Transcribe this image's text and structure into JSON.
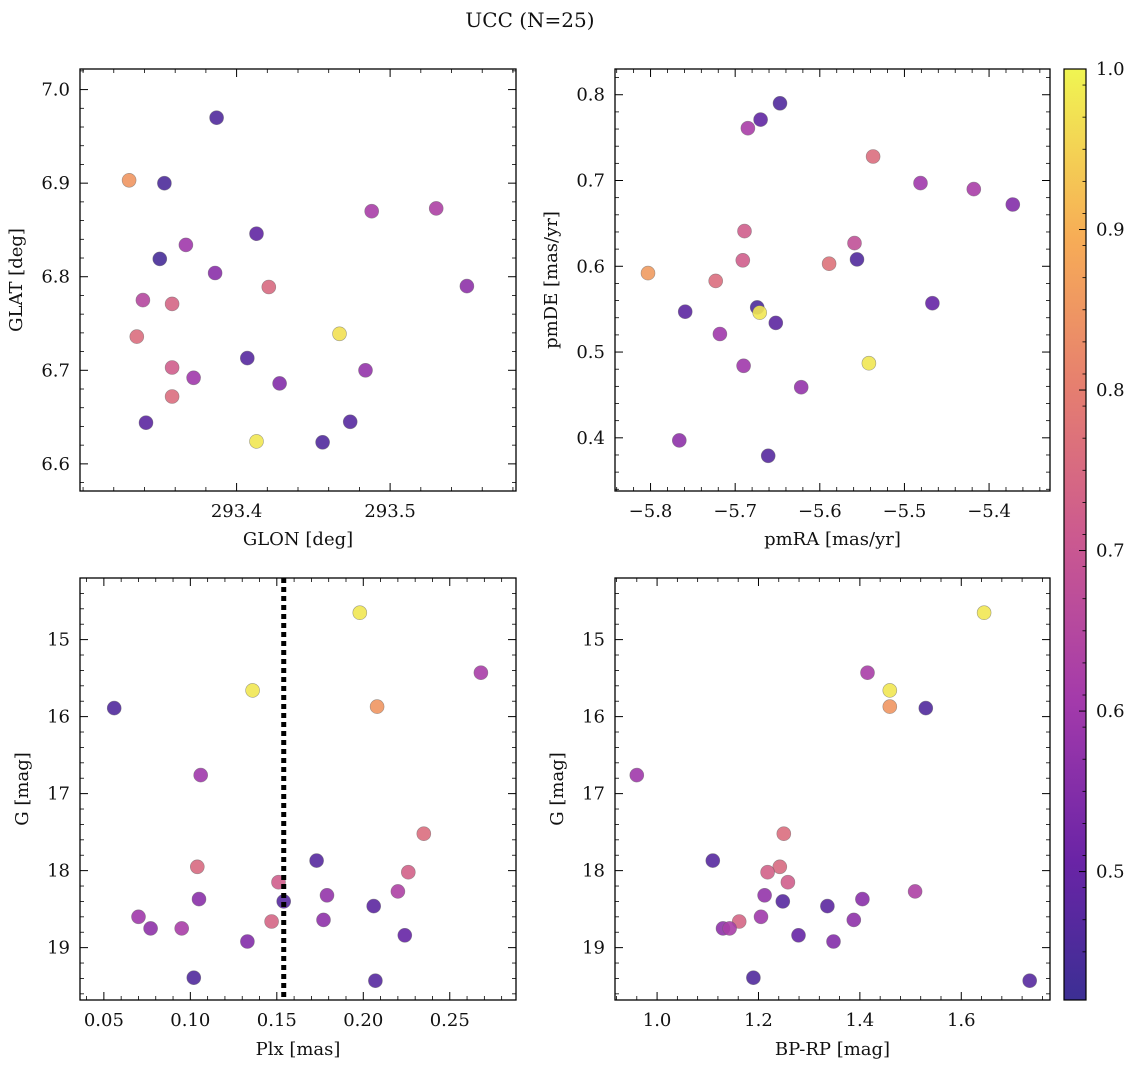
{
  "figure": {
    "title": "UCC (N=25)"
  },
  "colorbar": {
    "range": [
      0.42,
      1.0
    ],
    "ticks": [
      0.5,
      0.6,
      0.7,
      0.8,
      0.9,
      1.0
    ],
    "tick_labels": [
      "0.5",
      "0.6",
      "0.7",
      "0.8",
      "0.9",
      "1.0"
    ],
    "colormap": "plasma"
  },
  "styles": {
    "marker_alpha": 0.9,
    "marker_edge": "#666666",
    "vline_color": "#000000"
  },
  "chart_data": [
    {
      "type": "scatter",
      "name": "glon-glat",
      "xlabel": "GLON [deg]",
      "ylabel": "GLAT [deg]",
      "xlim": [
        293.298,
        293.582
      ],
      "ylim": [
        6.571,
        7.022
      ],
      "xticks": [
        293.4,
        293.5
      ],
      "xtick_labels": [
        "293.4",
        "293.5"
      ],
      "yticks": [
        6.6,
        6.7,
        6.8,
        6.9,
        7.0
      ],
      "ytick_labels": [
        "6.6",
        "6.7",
        "6.8",
        "6.9",
        "7.0"
      ],
      "points": [
        {
          "x": 293.33,
          "y": 6.903,
          "c": 0.85
        },
        {
          "x": 293.353,
          "y": 6.9,
          "c": 0.45
        },
        {
          "x": 293.387,
          "y": 6.97,
          "c": 0.46
        },
        {
          "x": 293.35,
          "y": 6.819,
          "c": 0.44
        },
        {
          "x": 293.367,
          "y": 6.834,
          "c": 0.6
        },
        {
          "x": 293.413,
          "y": 6.846,
          "c": 0.49
        },
        {
          "x": 293.386,
          "y": 6.804,
          "c": 0.56
        },
        {
          "x": 293.421,
          "y": 6.789,
          "c": 0.75
        },
        {
          "x": 293.339,
          "y": 6.775,
          "c": 0.65
        },
        {
          "x": 293.358,
          "y": 6.771,
          "c": 0.74
        },
        {
          "x": 293.335,
          "y": 6.736,
          "c": 0.76
        },
        {
          "x": 293.407,
          "y": 6.713,
          "c": 0.47
        },
        {
          "x": 293.358,
          "y": 6.703,
          "c": 0.72
        },
        {
          "x": 293.372,
          "y": 6.692,
          "c": 0.6
        },
        {
          "x": 293.428,
          "y": 6.686,
          "c": 0.55
        },
        {
          "x": 293.358,
          "y": 6.672,
          "c": 0.76
        },
        {
          "x": 293.341,
          "y": 6.644,
          "c": 0.48
        },
        {
          "x": 293.413,
          "y": 6.624,
          "c": 0.98
        },
        {
          "x": 293.456,
          "y": 6.623,
          "c": 0.46
        },
        {
          "x": 293.474,
          "y": 6.645,
          "c": 0.47
        },
        {
          "x": 293.484,
          "y": 6.7,
          "c": 0.58
        },
        {
          "x": 293.467,
          "y": 6.739,
          "c": 0.97
        },
        {
          "x": 293.488,
          "y": 6.87,
          "c": 0.62
        },
        {
          "x": 293.53,
          "y": 6.873,
          "c": 0.63
        },
        {
          "x": 293.55,
          "y": 6.79,
          "c": 0.57
        }
      ]
    },
    {
      "type": "scatter",
      "name": "pm",
      "xlabel": "pmRA [mas/yr]",
      "ylabel": "pmDE [mas/yr]",
      "xlim": [
        -5.842,
        -5.328
      ],
      "ylim": [
        0.338,
        0.83
      ],
      "xticks": [
        -5.8,
        -5.7,
        -5.6,
        -5.5,
        -5.4
      ],
      "xtick_labels": [
        "−5.8",
        "−5.7",
        "−5.6",
        "−5.5",
        "−5.4"
      ],
      "yticks": [
        0.4,
        0.5,
        0.6,
        0.7,
        0.8
      ],
      "ytick_labels": [
        "0.4",
        "0.5",
        "0.6",
        "0.7",
        "0.8"
      ],
      "points": [
        {
          "x": -5.647,
          "y": 0.79,
          "c": 0.46
        },
        {
          "x": -5.67,
          "y": 0.771,
          "c": 0.49
        },
        {
          "x": -5.685,
          "y": 0.761,
          "c": 0.62
        },
        {
          "x": -5.537,
          "y": 0.728,
          "c": 0.76
        },
        {
          "x": -5.481,
          "y": 0.697,
          "c": 0.6
        },
        {
          "x": -5.418,
          "y": 0.69,
          "c": 0.62
        },
        {
          "x": -5.372,
          "y": 0.672,
          "c": 0.55
        },
        {
          "x": -5.689,
          "y": 0.641,
          "c": 0.72
        },
        {
          "x": -5.559,
          "y": 0.627,
          "c": 0.68
        },
        {
          "x": -5.556,
          "y": 0.608,
          "c": 0.46
        },
        {
          "x": -5.691,
          "y": 0.607,
          "c": 0.72
        },
        {
          "x": -5.589,
          "y": 0.603,
          "c": 0.77
        },
        {
          "x": -5.803,
          "y": 0.592,
          "c": 0.86
        },
        {
          "x": -5.723,
          "y": 0.583,
          "c": 0.76
        },
        {
          "x": -5.467,
          "y": 0.557,
          "c": 0.5
        },
        {
          "x": -5.674,
          "y": 0.552,
          "c": 0.45
        },
        {
          "x": -5.671,
          "y": 0.546,
          "c": 0.98
        },
        {
          "x": -5.759,
          "y": 0.547,
          "c": 0.48
        },
        {
          "x": -5.652,
          "y": 0.534,
          "c": 0.48
        },
        {
          "x": -5.718,
          "y": 0.521,
          "c": 0.6
        },
        {
          "x": -5.542,
          "y": 0.487,
          "c": 0.98
        },
        {
          "x": -5.69,
          "y": 0.484,
          "c": 0.6
        },
        {
          "x": -5.622,
          "y": 0.459,
          "c": 0.58
        },
        {
          "x": -5.766,
          "y": 0.397,
          "c": 0.57
        },
        {
          "x": -5.661,
          "y": 0.379,
          "c": 0.47
        }
      ]
    },
    {
      "type": "scatter",
      "name": "plx-g",
      "xlabel": "Plx [mas]",
      "ylabel": "G [mag]",
      "xlim": [
        0.0362,
        0.2883
      ],
      "ylim": [
        19.68,
        14.2
      ],
      "y_inverted": true,
      "vline_x": 0.154,
      "xticks": [
        0.05,
        0.1,
        0.15,
        0.2,
        0.25
      ],
      "xtick_labels": [
        "0.05",
        "0.10",
        "0.15",
        "0.20",
        "0.25"
      ],
      "yticks": [
        15,
        16,
        17,
        18,
        19
      ],
      "ytick_labels": [
        "15",
        "16",
        "17",
        "18",
        "19"
      ],
      "points": [
        {
          "x": 0.198,
          "y": 14.65,
          "c": 0.98
        },
        {
          "x": 0.268,
          "y": 15.43,
          "c": 0.62
        },
        {
          "x": 0.136,
          "y": 15.66,
          "c": 0.98
        },
        {
          "x": 0.208,
          "y": 15.87,
          "c": 0.85
        },
        {
          "x": 0.056,
          "y": 15.89,
          "c": 0.46
        },
        {
          "x": 0.106,
          "y": 16.76,
          "c": 0.6
        },
        {
          "x": 0.235,
          "y": 17.52,
          "c": 0.76
        },
        {
          "x": 0.173,
          "y": 17.87,
          "c": 0.47
        },
        {
          "x": 0.104,
          "y": 17.95,
          "c": 0.75
        },
        {
          "x": 0.226,
          "y": 18.02,
          "c": 0.73
        },
        {
          "x": 0.151,
          "y": 18.15,
          "c": 0.72
        },
        {
          "x": 0.22,
          "y": 18.27,
          "c": 0.63
        },
        {
          "x": 0.179,
          "y": 18.32,
          "c": 0.58
        },
        {
          "x": 0.105,
          "y": 18.37,
          "c": 0.56
        },
        {
          "x": 0.154,
          "y": 18.4,
          "c": 0.47
        },
        {
          "x": 0.206,
          "y": 18.46,
          "c": 0.48
        },
        {
          "x": 0.07,
          "y": 18.6,
          "c": 0.6
        },
        {
          "x": 0.177,
          "y": 18.64,
          "c": 0.57
        },
        {
          "x": 0.147,
          "y": 18.66,
          "c": 0.74
        },
        {
          "x": 0.077,
          "y": 18.75,
          "c": 0.57
        },
        {
          "x": 0.095,
          "y": 18.75,
          "c": 0.62
        },
        {
          "x": 0.224,
          "y": 18.84,
          "c": 0.5
        },
        {
          "x": 0.133,
          "y": 18.92,
          "c": 0.55
        },
        {
          "x": 0.102,
          "y": 19.39,
          "c": 0.46
        },
        {
          "x": 0.207,
          "y": 19.43,
          "c": 0.47
        }
      ]
    },
    {
      "type": "scatter",
      "name": "cmd",
      "xlabel": "BP-RP [mag]",
      "ylabel": "G [mag]",
      "xlim": [
        0.917,
        1.775
      ],
      "ylim": [
        19.68,
        14.2
      ],
      "y_inverted": true,
      "xticks": [
        1.0,
        1.2,
        1.4,
        1.6
      ],
      "xtick_labels": [
        "1.0",
        "1.2",
        "1.4",
        "1.6"
      ],
      "yticks": [
        15,
        16,
        17,
        18,
        19
      ],
      "ytick_labels": [
        "15",
        "16",
        "17",
        "18",
        "19"
      ],
      "points": [
        {
          "x": 1.645,
          "y": 14.65,
          "c": 0.98
        },
        {
          "x": 1.415,
          "y": 15.43,
          "c": 0.62
        },
        {
          "x": 1.459,
          "y": 15.66,
          "c": 0.98
        },
        {
          "x": 1.459,
          "y": 15.87,
          "c": 0.85
        },
        {
          "x": 1.53,
          "y": 15.89,
          "c": 0.46
        },
        {
          "x": 0.96,
          "y": 16.76,
          "c": 0.6
        },
        {
          "x": 1.25,
          "y": 17.52,
          "c": 0.76
        },
        {
          "x": 1.11,
          "y": 17.87,
          "c": 0.47
        },
        {
          "x": 1.242,
          "y": 17.95,
          "c": 0.75
        },
        {
          "x": 1.218,
          "y": 18.02,
          "c": 0.73
        },
        {
          "x": 1.258,
          "y": 18.15,
          "c": 0.72
        },
        {
          "x": 1.509,
          "y": 18.27,
          "c": 0.63
        },
        {
          "x": 1.212,
          "y": 18.32,
          "c": 0.58
        },
        {
          "x": 1.405,
          "y": 18.37,
          "c": 0.56
        },
        {
          "x": 1.248,
          "y": 18.4,
          "c": 0.47
        },
        {
          "x": 1.336,
          "y": 18.46,
          "c": 0.48
        },
        {
          "x": 1.205,
          "y": 18.6,
          "c": 0.6
        },
        {
          "x": 1.388,
          "y": 18.64,
          "c": 0.57
        },
        {
          "x": 1.162,
          "y": 18.66,
          "c": 0.74
        },
        {
          "x": 1.13,
          "y": 18.75,
          "c": 0.57
        },
        {
          "x": 1.143,
          "y": 18.75,
          "c": 0.62
        },
        {
          "x": 1.279,
          "y": 18.84,
          "c": 0.5
        },
        {
          "x": 1.348,
          "y": 18.92,
          "c": 0.55
        },
        {
          "x": 1.19,
          "y": 19.39,
          "c": 0.46
        },
        {
          "x": 1.735,
          "y": 19.43,
          "c": 0.47
        }
      ]
    }
  ]
}
